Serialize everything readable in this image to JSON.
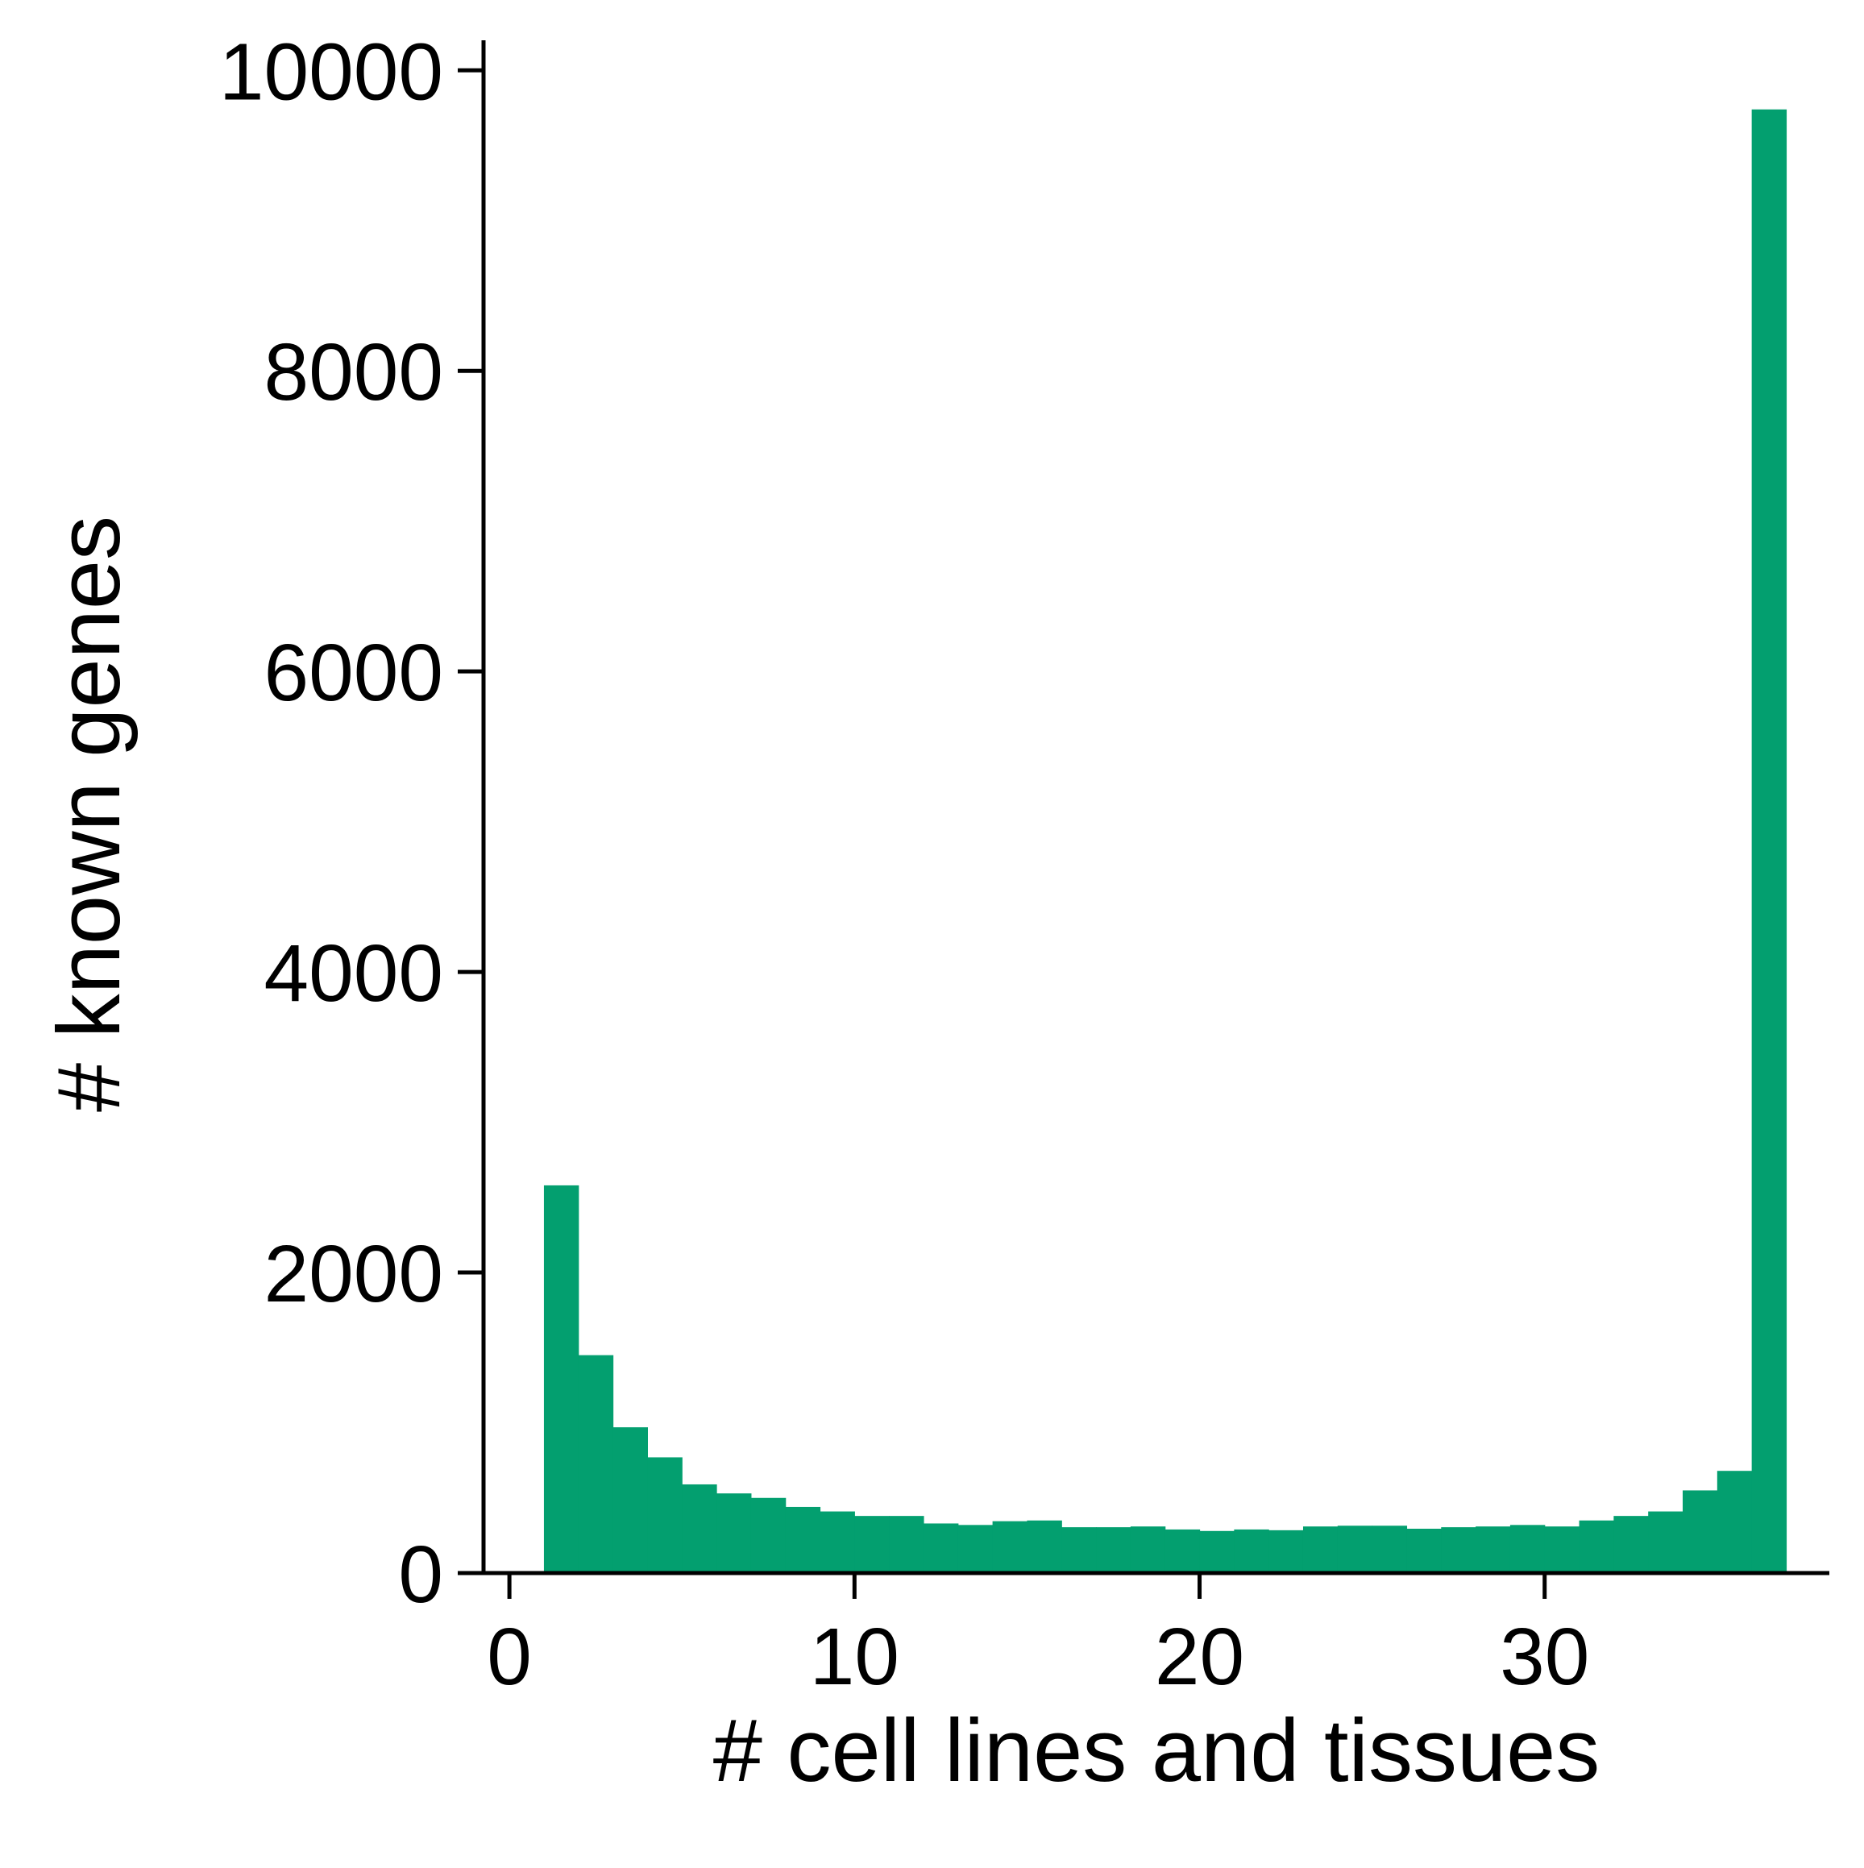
{
  "chart_data": {
    "type": "bar",
    "xlabel": "# cell lines and tissues",
    "ylabel": "# known genes",
    "xlim": [
      -0.75,
      38.25
    ],
    "ylim": [
      0,
      10200
    ],
    "xticks": [
      0,
      10,
      20,
      30
    ],
    "yticks": [
      0,
      2000,
      4000,
      6000,
      8000,
      10000
    ],
    "bar_color": "#039f6f",
    "bin_width": 1,
    "bins": [
      {
        "x0": 1,
        "x1": 2,
        "value": 2580
      },
      {
        "x0": 2,
        "x1": 3,
        "value": 1450
      },
      {
        "x0": 3,
        "x1": 4,
        "value": 970
      },
      {
        "x0": 4,
        "x1": 5,
        "value": 770
      },
      {
        "x0": 5,
        "x1": 6,
        "value": 590
      },
      {
        "x0": 6,
        "x1": 7,
        "value": 530
      },
      {
        "x0": 7,
        "x1": 8,
        "value": 500
      },
      {
        "x0": 8,
        "x1": 9,
        "value": 440
      },
      {
        "x0": 9,
        "x1": 10,
        "value": 410
      },
      {
        "x0": 10,
        "x1": 11,
        "value": 380
      },
      {
        "x0": 11,
        "x1": 12,
        "value": 380
      },
      {
        "x0": 12,
        "x1": 13,
        "value": 330
      },
      {
        "x0": 13,
        "x1": 14,
        "value": 320
      },
      {
        "x0": 14,
        "x1": 15,
        "value": 345
      },
      {
        "x0": 15,
        "x1": 16,
        "value": 350
      },
      {
        "x0": 16,
        "x1": 17,
        "value": 305
      },
      {
        "x0": 17,
        "x1": 18,
        "value": 305
      },
      {
        "x0": 18,
        "x1": 19,
        "value": 310
      },
      {
        "x0": 19,
        "x1": 20,
        "value": 290
      },
      {
        "x0": 20,
        "x1": 21,
        "value": 280
      },
      {
        "x0": 21,
        "x1": 22,
        "value": 290
      },
      {
        "x0": 22,
        "x1": 23,
        "value": 285
      },
      {
        "x0": 23,
        "x1": 24,
        "value": 310
      },
      {
        "x0": 24,
        "x1": 25,
        "value": 315
      },
      {
        "x0": 25,
        "x1": 26,
        "value": 315
      },
      {
        "x0": 26,
        "x1": 27,
        "value": 295
      },
      {
        "x0": 27,
        "x1": 28,
        "value": 305
      },
      {
        "x0": 28,
        "x1": 29,
        "value": 310
      },
      {
        "x0": 29,
        "x1": 30,
        "value": 320
      },
      {
        "x0": 30,
        "x1": 31,
        "value": 310
      },
      {
        "x0": 31,
        "x1": 32,
        "value": 350
      },
      {
        "x0": 32,
        "x1": 33,
        "value": 380
      },
      {
        "x0": 33,
        "x1": 34,
        "value": 410
      },
      {
        "x0": 34,
        "x1": 35,
        "value": 550
      },
      {
        "x0": 35,
        "x1": 36,
        "value": 680
      },
      {
        "x0": 36,
        "x1": 37,
        "value": 9740
      }
    ]
  }
}
